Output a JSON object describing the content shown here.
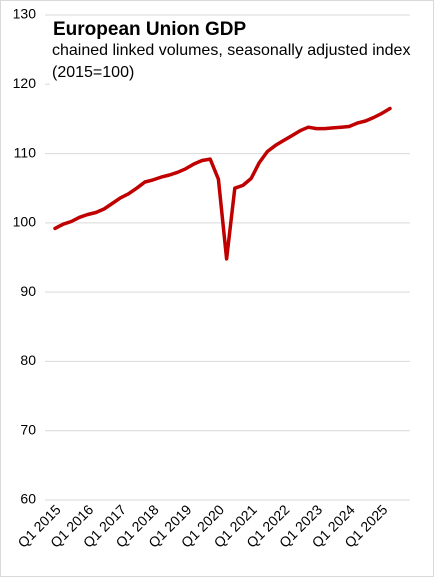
{
  "chart_data": {
    "type": "line",
    "title": "European Union GDP",
    "subtitle": "chained linked volumes, seasonally adjusted index (2015=100)",
    "categories": [
      "Q1 2015",
      null,
      null,
      null,
      "Q1 2016",
      null,
      null,
      null,
      "Q1 2017",
      null,
      null,
      null,
      "Q1 2018",
      null,
      null,
      null,
      "Q1 2019",
      null,
      null,
      null,
      "Q1 2020",
      null,
      null,
      null,
      "Q1 2021",
      null,
      null,
      null,
      "Q1 2022",
      null,
      null,
      null,
      "Q1 2023",
      null,
      null,
      null,
      "Q1 2024",
      null,
      null,
      null,
      "Q1 2025",
      null
    ],
    "series": [
      {
        "name": "EU GDP",
        "color": "#c00000",
        "values": [
          99.2,
          99.8,
          100.2,
          100.8,
          101.2,
          101.5,
          102.0,
          102.8,
          103.6,
          104.2,
          105.0,
          105.9,
          106.2,
          106.6,
          106.9,
          107.3,
          107.8,
          108.5,
          109.0,
          109.2,
          106.3,
          94.8,
          105.0,
          105.4,
          106.4,
          108.7,
          110.3,
          111.2,
          111.9,
          112.6,
          113.3,
          113.8,
          113.6,
          113.6,
          113.7,
          113.8,
          113.9,
          114.4,
          114.7,
          115.2,
          115.8,
          116.5
        ]
      }
    ],
    "ylim": [
      60,
      130
    ],
    "yticks": [
      60,
      70,
      80,
      90,
      100,
      110,
      120,
      130
    ],
    "grid": true
  }
}
